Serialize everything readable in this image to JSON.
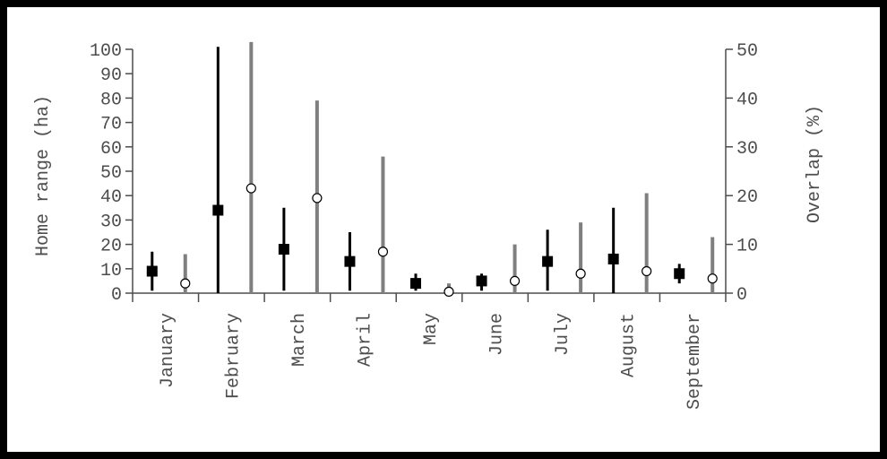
{
  "chart_data": {
    "type": "scatter",
    "ylabel": "Home range (ha)",
    "y2label": "Overlap (%)",
    "ylim": [
      0,
      100
    ],
    "y2lim": [
      0,
      50
    ],
    "yticks": [
      "0",
      "10",
      "20",
      "30",
      "40",
      "50",
      "60",
      "70",
      "80",
      "90",
      "100"
    ],
    "y2ticks": [
      "0",
      "10",
      "20",
      "30",
      "40",
      "50"
    ],
    "categories": [
      "January",
      "February",
      "March",
      "April",
      "May",
      "June",
      "July",
      "August",
      "September"
    ],
    "grid": false,
    "series": [
      {
        "axis": "left",
        "marker": "square",
        "color": "#000000",
        "values": [
          9,
          34,
          18,
          13,
          4,
          5,
          13,
          14,
          8
        ],
        "low": [
          1,
          0,
          1,
          1,
          1,
          1,
          1,
          0,
          4
        ],
        "high": [
          17,
          101,
          35,
          25,
          8,
          8,
          26,
          35,
          12
        ]
      },
      {
        "axis": "right",
        "marker": "circle",
        "color": "#7f7f7f",
        "values": [
          2,
          21.5,
          19.5,
          8.5,
          0.3,
          2.5,
          4,
          4.5,
          3
        ],
        "low": [
          0,
          0,
          0,
          0,
          0,
          0,
          0,
          0,
          0
        ],
        "high": [
          8,
          51.5,
          39.5,
          28,
          2,
          10,
          14.5,
          20.5,
          11.5
        ]
      }
    ]
  }
}
